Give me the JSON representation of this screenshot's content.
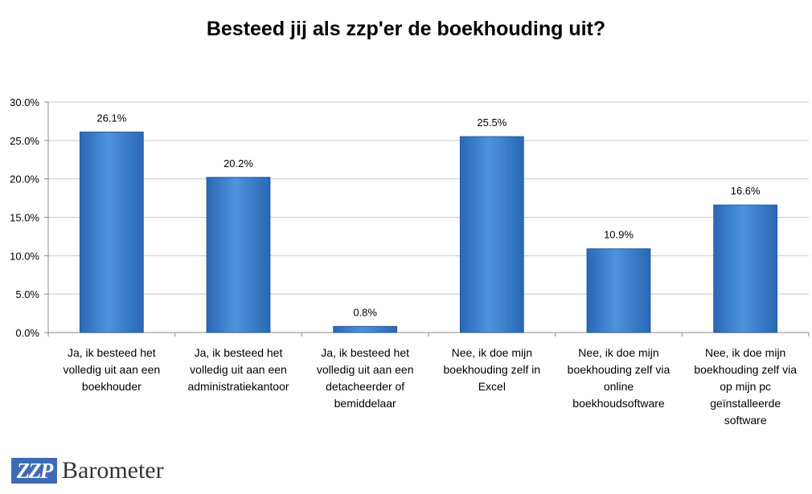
{
  "chart_data": {
    "type": "bar",
    "title": "Besteed jij als zzp'er de boekhouding uit?",
    "categories": [
      [
        "Ja, ik besteed het",
        "volledig uit aan een",
        "boekhouder"
      ],
      [
        "Ja, ik besteed het",
        "volledig uit aan een",
        "administratiekantoor"
      ],
      [
        "Ja, ik besteed het",
        "volledig uit aan een",
        "detacheerder of",
        "bemiddelaar"
      ],
      [
        "Nee, ik doe mijn",
        "boekhouding zelf in",
        "Excel"
      ],
      [
        "Nee, ik doe mijn",
        "boekhouding zelf via",
        "online",
        "boekhoudsoftware"
      ],
      [
        "Nee, ik doe mijn",
        "boekhouding zelf via",
        "op mijn pc",
        "geïnstalleerde",
        "software"
      ]
    ],
    "values": [
      26.1,
      20.2,
      0.8,
      25.5,
      10.9,
      16.6
    ],
    "data_labels": [
      "26.1%",
      "20.2%",
      "0.8%",
      "25.5%",
      "10.9%",
      "16.6%"
    ],
    "ylim": [
      0,
      30
    ],
    "yticks": [
      0,
      5,
      10,
      15,
      20,
      25,
      30
    ],
    "ytick_labels": [
      "0.0%",
      "5.0%",
      "10.0%",
      "15.0%",
      "20.0%",
      "25.0%",
      "30.0%"
    ],
    "grid": true,
    "bar_color": "#3d82cc"
  },
  "logo": {
    "mark": "ZZP",
    "text": "Barometer",
    "color": "#3f6bb5"
  }
}
